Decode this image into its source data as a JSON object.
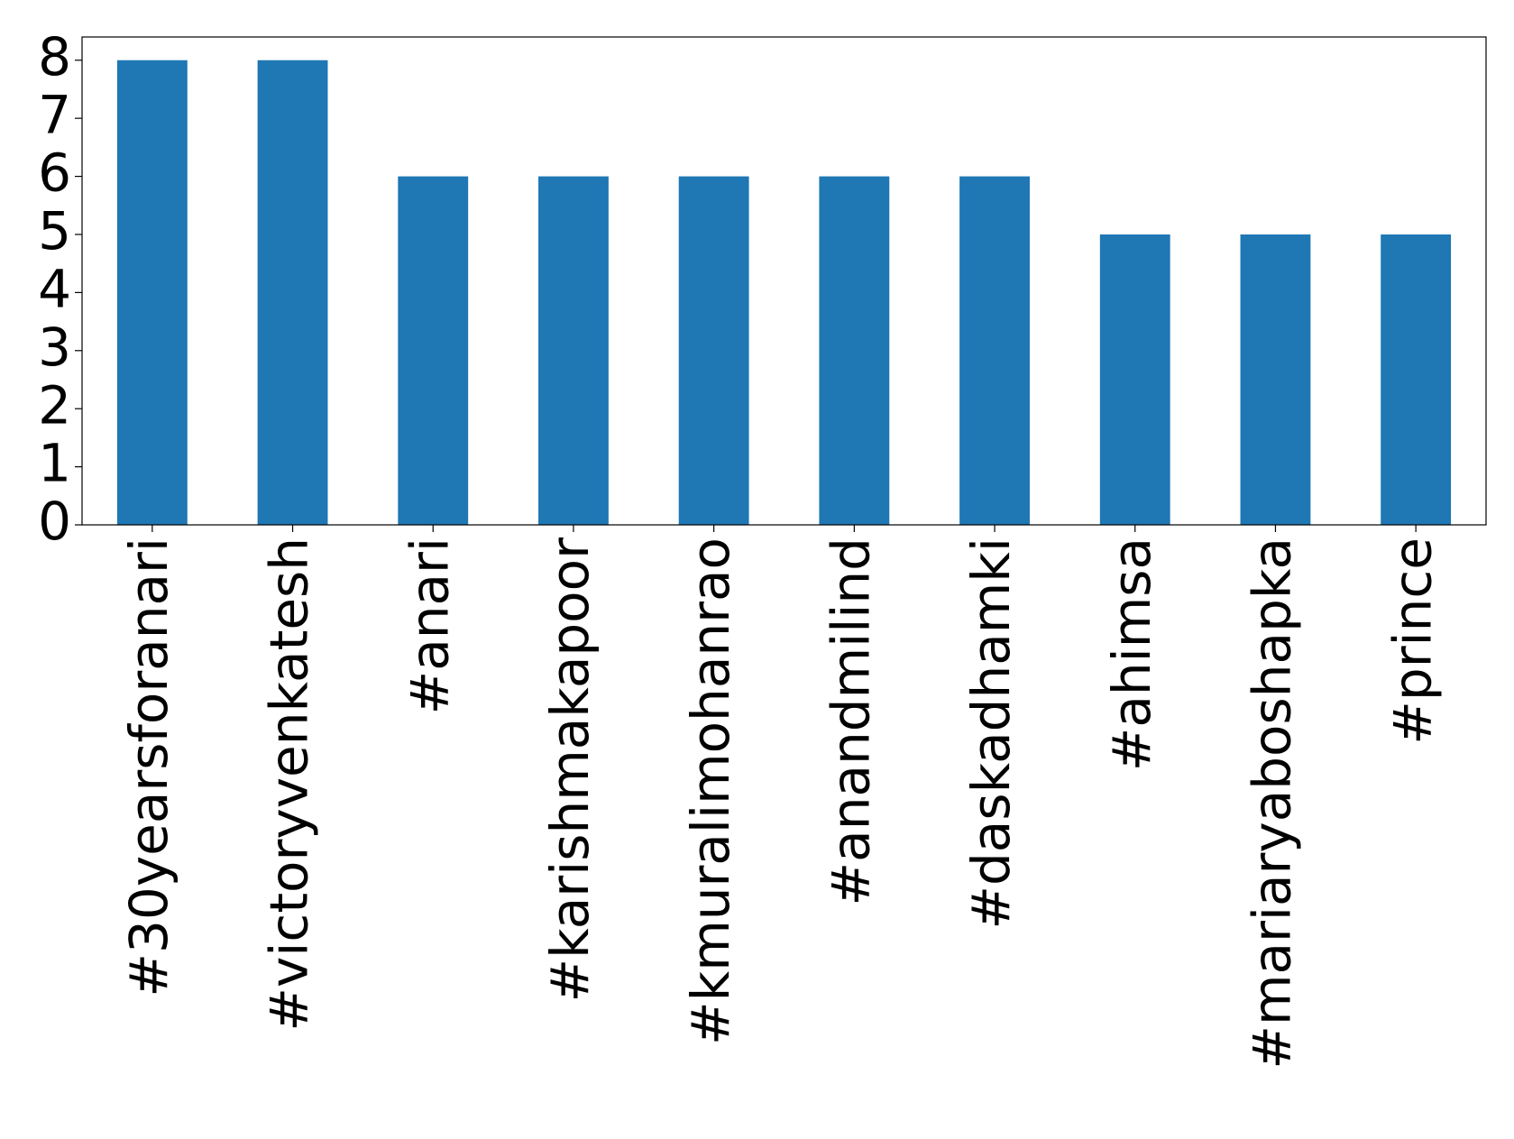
{
  "chart_data": {
    "type": "bar",
    "categories": [
      "#30yearsforanari",
      "#victoryvenkatesh",
      "#anari",
      "#karishmakapoor",
      "#kmuralimohanrao",
      "#anandmilind",
      "#daskadhamki",
      "#ahimsa",
      "#mariaryaboshapka",
      "#prince"
    ],
    "values": [
      8,
      8,
      6,
      6,
      6,
      6,
      6,
      5,
      5,
      5
    ],
    "color": "#1f77b4",
    "ylim": [
      0,
      8.4
    ],
    "yticks": [
      0,
      1,
      2,
      3,
      4,
      5,
      6,
      7,
      8
    ],
    "grid": false
  }
}
